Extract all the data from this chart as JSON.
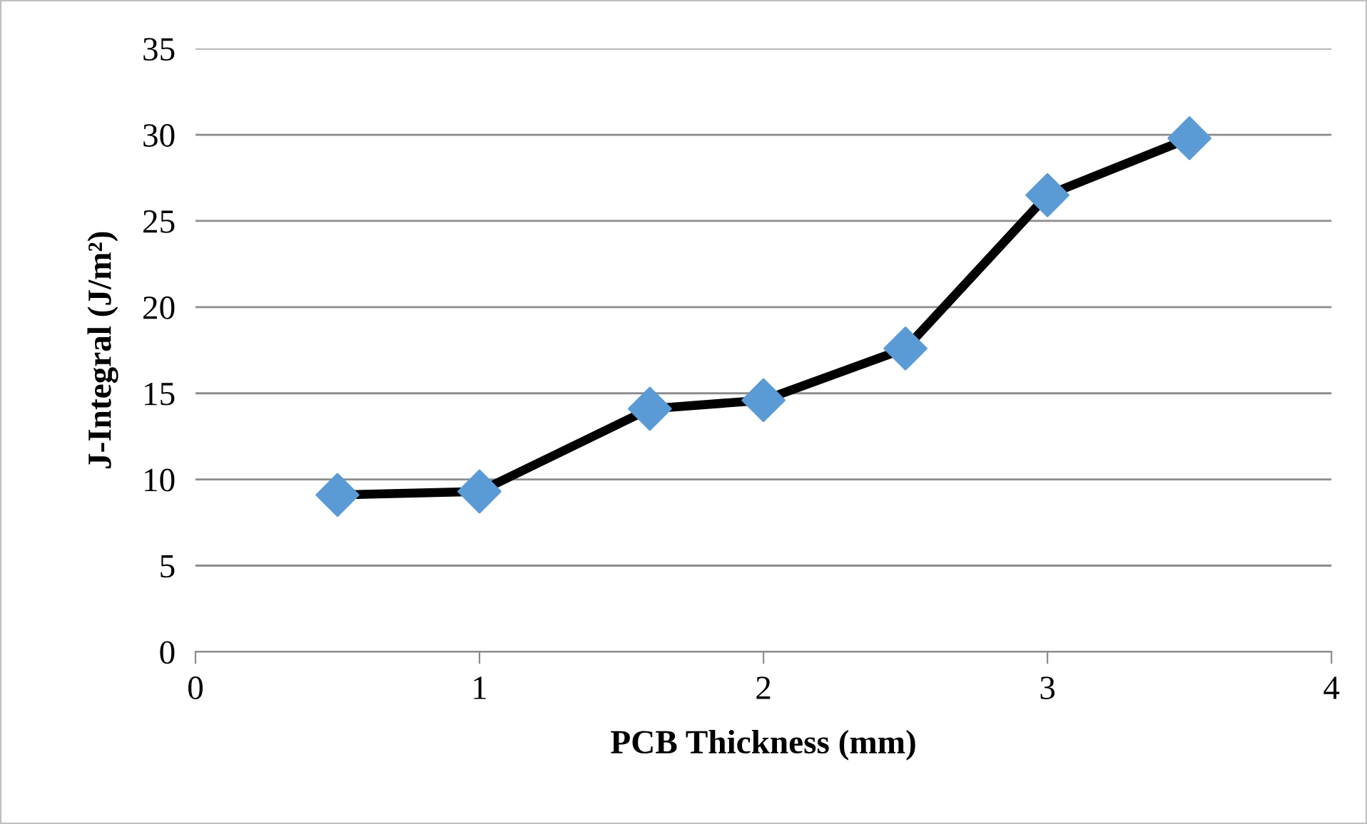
{
  "chart_data": {
    "type": "line",
    "xlabel": "PCB Thickness (mm)",
    "ylabel": "J-Integral (J/m²)",
    "x": [
      0.5,
      1,
      1.6,
      2,
      2.5,
      3,
      3.5
    ],
    "series": [
      {
        "color": "#000000",
        "colors": [
          "#5b9bd5",
          "#5b9bd5",
          "#5b9bd5",
          "#5b9bd5",
          "#5b9bd5",
          "#5b9bd5",
          "#5b9bd5"
        ],
        "values": [
          9.1,
          9.3,
          14.1,
          14.6,
          17.6,
          26.5,
          29.8
        ]
      }
    ],
    "xlim": [
      0,
      4
    ],
    "xticks": [
      0,
      1,
      2,
      3,
      4
    ],
    "ylim": [
      0,
      35
    ],
    "yticks": [
      0,
      5,
      10,
      15,
      20,
      25,
      30,
      35
    ],
    "grid": "y",
    "marker": "diamond",
    "line_style": "solid",
    "legend": false
  }
}
